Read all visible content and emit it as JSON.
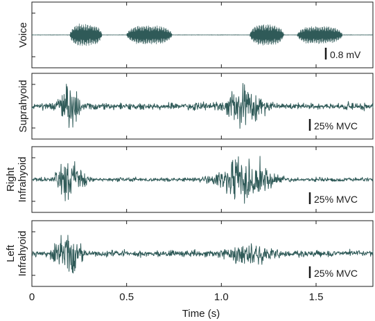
{
  "chart_data": {
    "type": "line",
    "xlabel": "Time (s)",
    "xlim": [
      0,
      1.8
    ],
    "x_ticks": [
      0,
      0.5,
      1.0,
      1.5
    ],
    "x_tick_labels": [
      "0",
      "0.5",
      "1.0",
      "1.5"
    ],
    "trace_color": "#2f5a58",
    "panels": [
      {
        "name": "voice",
        "ylabel_lines": [
          "Voice"
        ],
        "scale_bar_label": "0.8 mV",
        "signal": "voice",
        "bursts": [
          {
            "start": 0.2,
            "end": 0.37,
            "amplitude": 1.0
          },
          {
            "start": 0.5,
            "end": 0.74,
            "amplitude": 0.85
          },
          {
            "start": 1.15,
            "end": 1.33,
            "amplitude": 0.95
          },
          {
            "start": 1.4,
            "end": 1.64,
            "amplitude": 0.8
          }
        ]
      },
      {
        "name": "suprahyoid",
        "ylabel_lines": [
          "Suprahyoid"
        ],
        "scale_bar_label": "25% MVC",
        "signal": "emg",
        "baseline_noise": 0.18,
        "bursts": [
          {
            "center": 0.2,
            "width": 0.06,
            "amplitude": 0.8
          },
          {
            "center": 1.12,
            "width": 0.1,
            "amplitude": 0.75
          }
        ]
      },
      {
        "name": "right-infrahyoid",
        "ylabel_lines": [
          "Right",
          "Infrahyoid"
        ],
        "scale_bar_label": "25% MVC",
        "signal": "emg",
        "baseline_noise": 0.1,
        "bursts": [
          {
            "center": 0.2,
            "width": 0.07,
            "amplitude": 0.85
          },
          {
            "center": 1.12,
            "width": 0.14,
            "amplitude": 0.85
          }
        ]
      },
      {
        "name": "left-infrahyoid",
        "ylabel_lines": [
          "Left",
          "Infrahyoid"
        ],
        "scale_bar_label": "25% MVC",
        "signal": "emg",
        "baseline_noise": 0.16,
        "bursts": [
          {
            "center": 0.19,
            "width": 0.07,
            "amplitude": 0.85
          },
          {
            "center": 1.15,
            "width": 0.12,
            "amplitude": 0.45
          }
        ]
      }
    ]
  }
}
